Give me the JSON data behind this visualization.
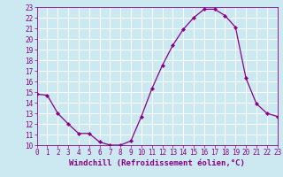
{
  "x": [
    0,
    1,
    2,
    3,
    4,
    5,
    6,
    7,
    8,
    9,
    10,
    11,
    12,
    13,
    14,
    15,
    16,
    17,
    18,
    19,
    20,
    21,
    22,
    23
  ],
  "y": [
    14.8,
    14.7,
    13.0,
    12.0,
    11.1,
    11.1,
    10.3,
    10.0,
    10.0,
    10.4,
    12.7,
    15.3,
    17.5,
    19.4,
    20.9,
    22.0,
    22.8,
    22.8,
    22.2,
    21.1,
    16.3,
    13.9,
    13.0,
    12.7
  ],
  "xlim": [
    0,
    23
  ],
  "ylim": [
    10,
    23
  ],
  "xticks": [
    0,
    1,
    2,
    3,
    4,
    5,
    6,
    7,
    8,
    9,
    10,
    11,
    12,
    13,
    14,
    15,
    16,
    17,
    18,
    19,
    20,
    21,
    22,
    23
  ],
  "yticks": [
    10,
    11,
    12,
    13,
    14,
    15,
    16,
    17,
    18,
    19,
    20,
    21,
    22,
    23
  ],
  "xlabel": "Windchill (Refroidissement éolien,°C)",
  "line_color": "#880088",
  "marker_color": "#880088",
  "bg_color": "#cce8f0",
  "grid_color": "#aaddee",
  "axis_label_color": "#880088",
  "tick_label_color": "#880088",
  "spine_color": "#880088",
  "xlabel_fontsize": 6.5,
  "tick_fontsize": 5.5
}
